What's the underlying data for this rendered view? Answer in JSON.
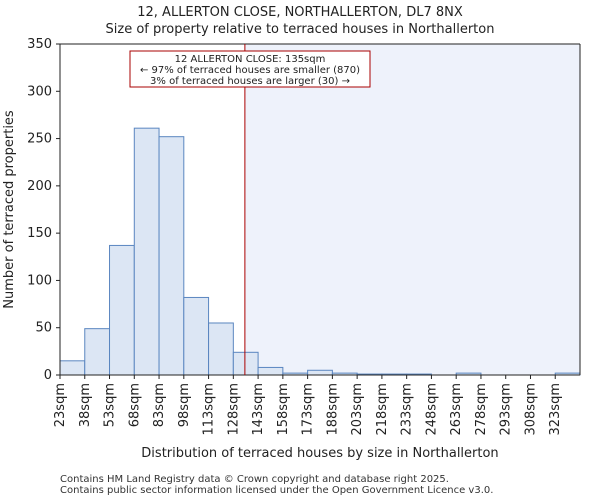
{
  "title_line1": "12, ALLERTON CLOSE, NORTHALLERTON, DL7 8NX",
  "title_line2": "Size of property relative to terraced houses in Northallerton",
  "footer_line1": "Contains HM Land Registry data © Crown copyright and database right 2025.",
  "footer_line2": "Contains public sector information licensed under the Open Government Licence v3.0.",
  "chart_data": {
    "type": "bar",
    "title": "Size of property relative to terraced houses in Northallerton",
    "xlabel": "Distribution of terraced houses by size in Northallerton",
    "ylabel": "Number of terraced properties",
    "ylim": [
      0,
      350
    ],
    "yticks": [
      0,
      50,
      100,
      150,
      200,
      250,
      300,
      350
    ],
    "categories": [
      "23sqm",
      "38sqm",
      "53sqm",
      "68sqm",
      "83sqm",
      "98sqm",
      "113sqm",
      "128sqm",
      "143sqm",
      "158sqm",
      "173sqm",
      "188sqm",
      "203sqm",
      "218sqm",
      "233sqm",
      "248sqm",
      "263sqm",
      "278sqm",
      "293sqm",
      "308sqm",
      "323sqm"
    ],
    "values": [
      15,
      49,
      137,
      261,
      252,
      82,
      55,
      24,
      8,
      2,
      5,
      2,
      1,
      1,
      1,
      0,
      2,
      0,
      0,
      0,
      2
    ],
    "bin_width": 15,
    "x_start": 23,
    "marker_value": 135,
    "annotation": {
      "line1": "12 ALLERTON CLOSE: 135sqm",
      "line2": "← 97% of terraced houses are smaller (870)",
      "line3": "3% of terraced houses are larger (30) →"
    },
    "colors": {
      "bar_fill": "#dce6f4",
      "bar_stroke": "#5a86c0",
      "right_shade": "#eef2fb",
      "marker": "#aa0000",
      "grid": "#b0b0b0"
    }
  }
}
